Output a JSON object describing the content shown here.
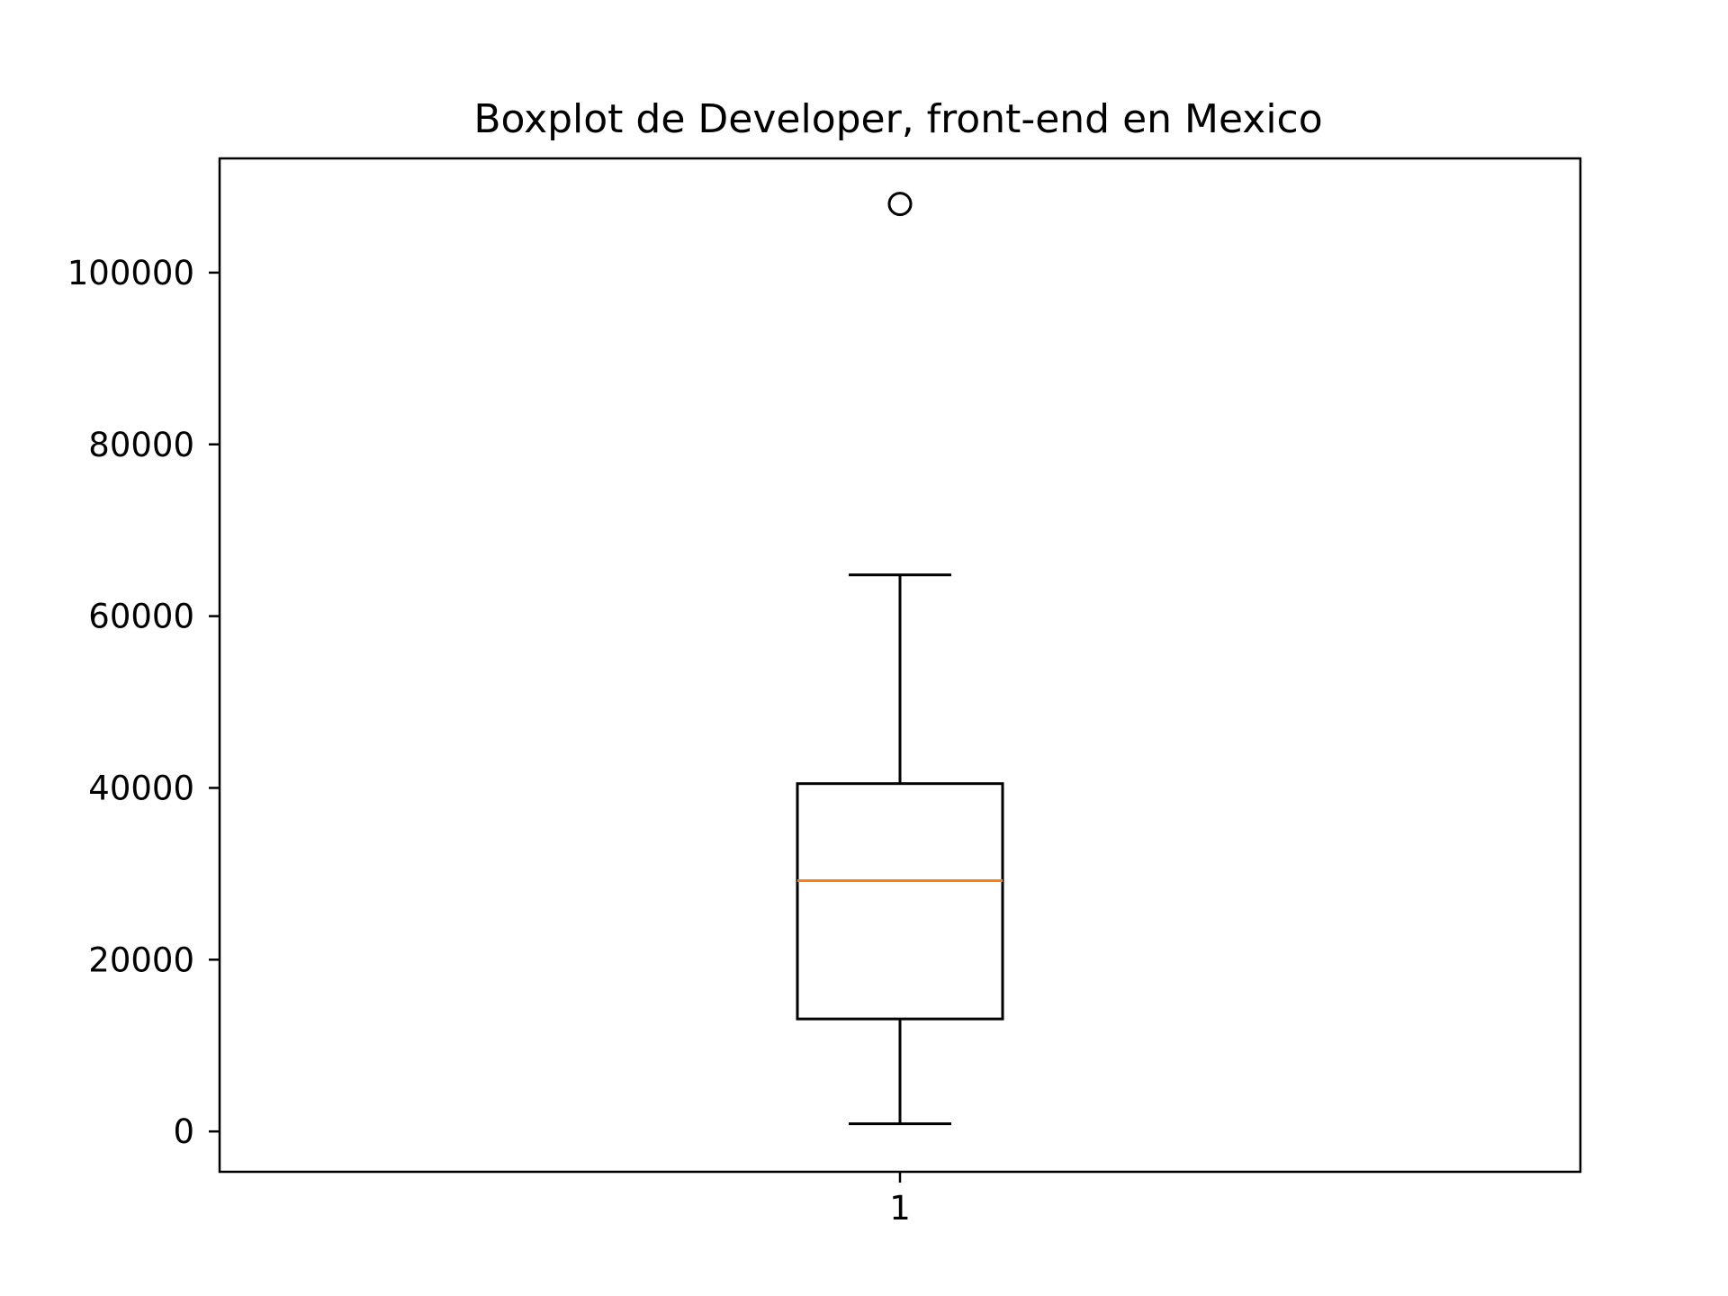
{
  "chart_data": {
    "type": "boxplot",
    "title": "Boxplot de Developer, front-end en Mexico",
    "xlabel": "",
    "ylabel": "",
    "categories": [
      "1"
    ],
    "series": [
      {
        "category": "1",
        "whisker_low": 900,
        "q1": 13100,
        "median": 29200,
        "q3": 40500,
        "whisker_high": 64800,
        "outliers": [
          108000
        ]
      }
    ],
    "ylim": [
      -4700,
      113300
    ],
    "yticks": [
      {
        "value": 0,
        "label": "0"
      },
      {
        "value": 20000,
        "label": "20000"
      },
      {
        "value": 40000,
        "label": "40000"
      },
      {
        "value": 60000,
        "label": "60000"
      },
      {
        "value": 80000,
        "label": "80000"
      },
      {
        "value": 100000,
        "label": "100000"
      }
    ],
    "grid": false,
    "colors": {
      "box": "#000000",
      "median": "#ff7f0e",
      "outlier": "#000000"
    }
  }
}
